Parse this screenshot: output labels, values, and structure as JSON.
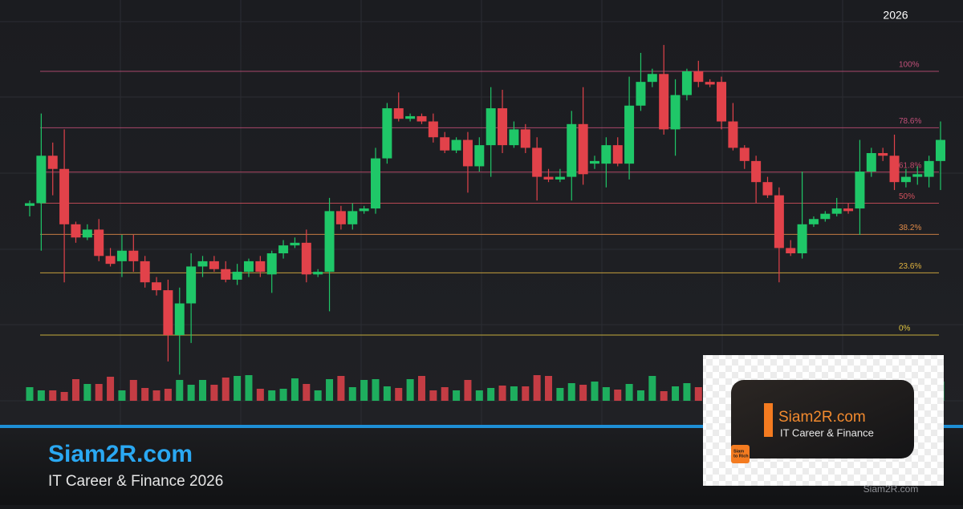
{
  "chart_data": {
    "type": "candlestick",
    "year": "2026",
    "up_color": "#1fc768",
    "down_color": "#e2424a",
    "ylim": [
      -15,
      110
    ],
    "fib_levels": [
      {
        "value": 100,
        "label": "100%",
        "color": "#c2507a"
      },
      {
        "value": 78.6,
        "label": "78.6%",
        "color": "#c2507a"
      },
      {
        "value": 61.8,
        "label": "61.8%",
        "color": "#c04a6a"
      },
      {
        "value": 50,
        "label": "50%",
        "color": "#d2505c"
      },
      {
        "value": 38.2,
        "label": "38.2%",
        "color": "#e08a48"
      },
      {
        "value": 23.6,
        "label": "23.6%",
        "color": "#e2b440"
      },
      {
        "value": 0,
        "label": "0%",
        "color": "#e2c640"
      }
    ],
    "open": [
      49,
      50,
      68,
      63,
      42,
      37,
      40,
      30,
      28,
      32,
      28,
      20,
      17,
      0,
      12,
      26,
      28,
      25,
      21,
      24,
      28,
      23,
      31,
      34,
      35,
      23,
      24,
      47,
      42,
      47,
      48,
      67,
      86,
      82,
      83,
      81,
      75,
      70,
      74,
      64,
      72,
      86,
      72,
      78,
      71,
      60,
      59,
      60,
      80,
      65,
      65,
      72,
      65,
      87,
      96,
      99,
      78,
      91,
      100,
      96,
      96,
      81,
      71,
      66,
      58,
      53,
      33,
      31,
      42,
      44,
      46,
      48,
      48,
      62,
      69,
      68,
      58,
      60,
      60,
      66
    ],
    "high": [
      51,
      84,
      73,
      78,
      43,
      42,
      44,
      33,
      38,
      38,
      30,
      22,
      21,
      18,
      31,
      30,
      30,
      28,
      27,
      29,
      30,
      32,
      36,
      37,
      40,
      25,
      52,
      49,
      50,
      49,
      71,
      88,
      92,
      84,
      84,
      84,
      77,
      75,
      77,
      75,
      94,
      93,
      81,
      80,
      75,
      63,
      63,
      85,
      94,
      68,
      75,
      75,
      98,
      107,
      101,
      110,
      97,
      101,
      104,
      97,
      98,
      88,
      72,
      68,
      60,
      56,
      36,
      62,
      45,
      47,
      52,
      50,
      74,
      71,
      71,
      76,
      63,
      64,
      68,
      81
    ],
    "low": [
      45,
      32,
      53,
      20,
      35,
      36,
      28,
      26,
      22,
      24,
      18,
      15,
      -10,
      -15,
      -3,
      22,
      24,
      20,
      19,
      22,
      22,
      16,
      29,
      33,
      20,
      22,
      9,
      40,
      40,
      46,
      46,
      65,
      81,
      81,
      80,
      73,
      69,
      69,
      54,
      62,
      60,
      69,
      71,
      69,
      51,
      58,
      58,
      51,
      57,
      63,
      56,
      64,
      59,
      85,
      94,
      76,
      68,
      89,
      94,
      94,
      78,
      70,
      63,
      50,
      52,
      20,
      30,
      29,
      41,
      43,
      45,
      46,
      38,
      60,
      66,
      55,
      56,
      57,
      56,
      55
    ],
    "close": [
      50,
      68,
      63,
      42,
      37,
      40,
      30,
      27,
      32,
      28,
      20,
      17,
      0,
      12,
      26,
      28,
      25,
      21,
      24,
      28,
      24,
      31,
      34,
      35,
      23,
      24,
      47,
      42,
      47,
      48,
      67,
      86,
      82,
      83,
      81,
      75,
      70,
      74,
      64,
      72,
      86,
      72,
      78,
      71,
      60,
      59,
      60,
      80,
      61,
      66,
      72,
      65,
      87,
      96,
      99,
      78,
      91,
      100,
      96,
      95,
      81,
      71,
      66,
      58,
      53,
      33,
      31,
      42,
      44,
      46,
      48,
      47,
      62,
      69,
      68,
      58,
      60,
      61,
      66,
      74
    ],
    "volumes": [
      17,
      13,
      13,
      11,
      27,
      21,
      21,
      30,
      13,
      26,
      16,
      13,
      15,
      26,
      20,
      26,
      20,
      29,
      31,
      32,
      15,
      13,
      15,
      28,
      21,
      13,
      27,
      31,
      17,
      26,
      27,
      18,
      16,
      27,
      31,
      13,
      17,
      13,
      26,
      13,
      16,
      19,
      18,
      18,
      32,
      31,
      16,
      22,
      20,
      24,
      17,
      14,
      21,
      13,
      31,
      12,
      18,
      22,
      17,
      20,
      25,
      18,
      22,
      15,
      28,
      30,
      17,
      24,
      14,
      19,
      21,
      16,
      26,
      23,
      18,
      20,
      15,
      22,
      17,
      24
    ]
  },
  "branding": {
    "title": "Siam2R.com",
    "subtitle": "IT Career & Finance 2026"
  },
  "logo": {
    "name": "Siam2R.com",
    "tagline": "IT Career & Finance",
    "badge_top": "Siam",
    "badge_bottom": "to Rich"
  },
  "watermark": "Siam2R.com"
}
